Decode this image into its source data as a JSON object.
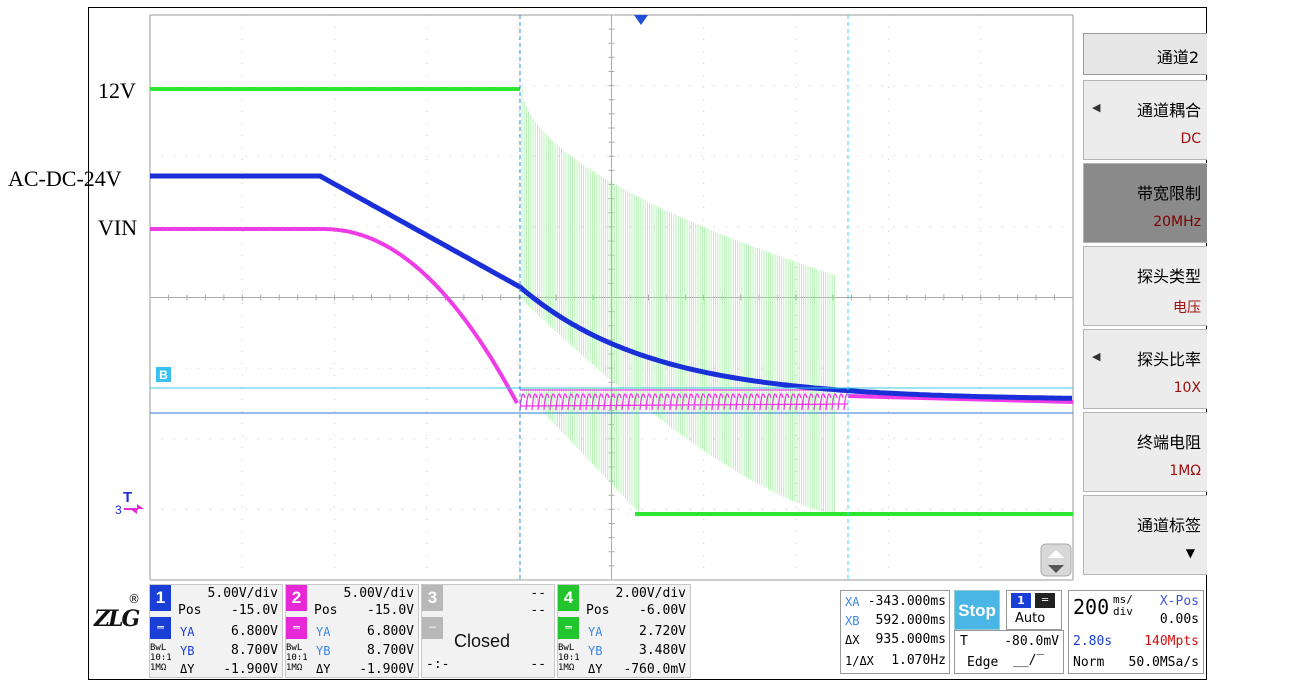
{
  "left_labels": {
    "ch4": "12V",
    "ch1": "AC-DC-24V",
    "ch2": "VIN"
  },
  "menu": {
    "title": "通道2",
    "items": [
      {
        "label": "通道耦合",
        "value": "DC",
        "arrow": "left"
      },
      {
        "label": "带宽限制",
        "value": "20MHz",
        "active": true
      },
      {
        "label": "探头类型",
        "value": "电压"
      },
      {
        "label": "探头比率",
        "value": "10X",
        "arrow": "left"
      },
      {
        "label": "终端电阻",
        "value": "1MΩ"
      },
      {
        "label": "通道标签",
        "value": "",
        "arrow": "down"
      }
    ]
  },
  "screen": {
    "trigger_marker_label": "T",
    "cursor_b_label": "B",
    "ch_marker_label": "3"
  },
  "channels": [
    {
      "num": "1",
      "color": "#1a3fd6",
      "scale": "5.00V/div",
      "pos_label": "Pos",
      "pos": "-15.0V",
      "ya_label": "YA",
      "ya": "6.800V",
      "yb_label": "YB",
      "yb": "8.700V",
      "dy_label": "ΔY",
      "dy": "-1.900V",
      "bw": [
        "BwL",
        "10:1",
        "1MΩ"
      ]
    },
    {
      "num": "2",
      "color": "#e628d6",
      "scale": "5.00V/div",
      "pos_label": "Pos",
      "pos": "-15.0V",
      "ya_label": "YA",
      "ya": "6.800V",
      "yb_label": "YB",
      "yb": "8.700V",
      "dy_label": "ΔY",
      "dy": "-1.900V",
      "bw": [
        "BwL",
        "10:1",
        "1MΩ"
      ]
    },
    {
      "num": "3",
      "color": "#b8b8b8",
      "status": "Closed",
      "dash1": "--",
      "dash2": "--",
      "dash3": "--",
      "dash4": "-:-"
    },
    {
      "num": "4",
      "color": "#22c52e",
      "scale": "2.00V/div",
      "pos_label": "Pos",
      "pos": "-6.00V",
      "ya_label": "YA",
      "ya": "2.720V",
      "yb_label": "YB",
      "yb": "3.480V",
      "dy_label": "ΔY",
      "dy": "-760.0mV",
      "bw": [
        "BwL",
        "10:1",
        "1MΩ"
      ]
    }
  ],
  "cursors": {
    "xa_label": "XA",
    "xa": "-343.000ms",
    "xb_label": "XB",
    "xb": "592.000ms",
    "dx_label": "ΔX",
    "dx": "935.000ms",
    "inv_dx_label": "1/ΔX",
    "inv_dx": "1.070Hz"
  },
  "trigger": {
    "run_state": "Stop",
    "source": "1",
    "mode": "Auto",
    "level_label": "T",
    "level": "-80.0mV",
    "type": "Edge"
  },
  "timebase": {
    "value": "200",
    "unit_top": "ms/",
    "unit_bottom": "div",
    "xpos_label": "X-Pos",
    "xpos": "0.00s",
    "record_time": "2.80s",
    "mem_depth": "140Mpts",
    "acq_mode": "Norm",
    "sample_rate": "50.0MSa/s"
  },
  "colors": {
    "ch1": "#1a2fd8",
    "ch2": "#ee3ce6",
    "ch4": "#2ee632",
    "ch4_light": "#a8f0a8",
    "cursor_x": "#2a8ee0",
    "cursor_x2": "#40d8e8",
    "cursor_y": "#2a8ee0",
    "grid": "#b8b8b8"
  }
}
